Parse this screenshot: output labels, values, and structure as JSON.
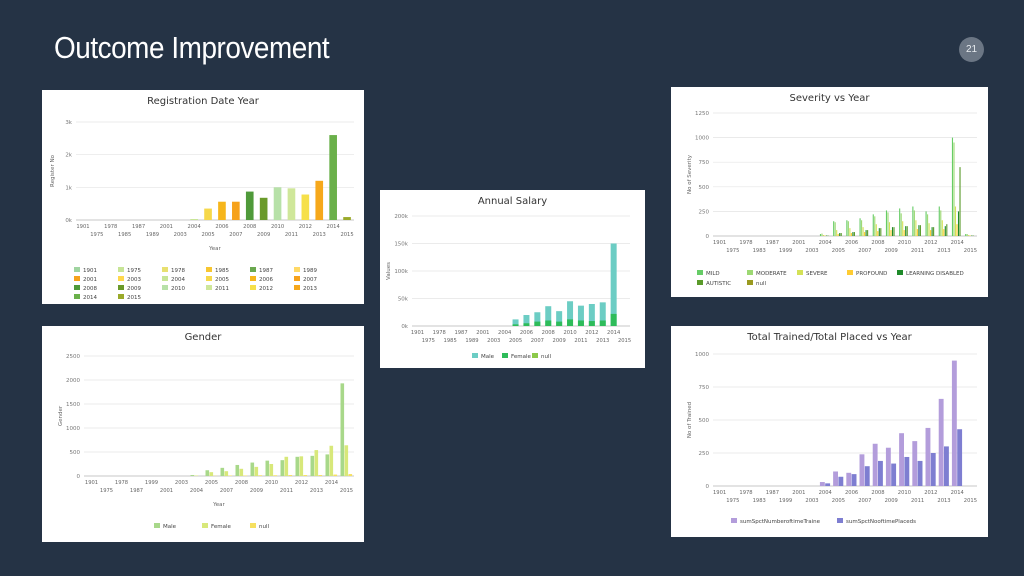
{
  "slide": {
    "title": "Outcome Improvement",
    "page_number": "21"
  },
  "chart_data": [
    {
      "id": "registration",
      "type": "bar",
      "title": "Registration Date Year",
      "xlabel": "Year",
      "ylabel": "Register No",
      "ylim": [
        0,
        3000
      ],
      "yticks": [
        0,
        1000,
        2000,
        3000
      ],
      "ytick_labels": [
        "0k",
        "1k",
        "2k",
        "3k"
      ],
      "categories": [
        "1901",
        "1975",
        "1978",
        "1985",
        "1987",
        "1989",
        "2001",
        "2003",
        "2004",
        "2005",
        "2006",
        "2007",
        "2008",
        "2009",
        "2010",
        "2011",
        "2012",
        "2013",
        "2014",
        "2015"
      ],
      "values": [
        0,
        0,
        0,
        0,
        0,
        0,
        0,
        0,
        30,
        350,
        560,
        560,
        870,
        680,
        1000,
        970,
        780,
        1200,
        2600,
        90
      ],
      "colors": [
        "#9fd4a0",
        "#c7e596",
        "#e8e070",
        "#f7c631",
        "#6aa84f",
        "#ffd966",
        "#f6a21b",
        "#ffd84d",
        "#c7e596",
        "#f6d84a",
        "#f6b61b",
        "#f6a21b",
        "#4f9a3a",
        "#6a9a2a",
        "#b7e1a8",
        "#cfe79a",
        "#f6e04a",
        "#f6a81b",
        "#6ab04a",
        "#9aaa2a"
      ],
      "legend": [
        "1901",
        "1975",
        "1978",
        "1985",
        "1987",
        "1989",
        "2001",
        "2003",
        "2004",
        "2005",
        "2006",
        "2007",
        "2008",
        "2009",
        "2010",
        "2011",
        "2012",
        "2013",
        "2014",
        "2015"
      ]
    },
    {
      "id": "annual_salary",
      "type": "bar",
      "title": "Annual Salary",
      "xlabel": "",
      "ylabel": "Values",
      "ylim": [
        0,
        200000
      ],
      "yticks": [
        0,
        50000,
        100000,
        150000,
        200000
      ],
      "ytick_labels": [
        "0k",
        "50k",
        "100k",
        "150k",
        "200k"
      ],
      "categories": [
        "1901",
        "1975",
        "1978",
        "1985",
        "1987",
        "1989",
        "2001",
        "2003",
        "2004",
        "2005",
        "2006",
        "2007",
        "2008",
        "2009",
        "2010",
        "2011",
        "2012",
        "2013",
        "2014",
        "2015"
      ],
      "series": [
        {
          "name": "Male",
          "color": "#6ccdc4",
          "values": [
            0,
            0,
            0,
            0,
            0,
            0,
            0,
            0,
            0,
            12000,
            20000,
            25000,
            36000,
            27000,
            45000,
            37000,
            40000,
            43000,
            150000,
            0
          ]
        },
        {
          "name": "Female",
          "color": "#2ebc5a",
          "values": [
            0,
            0,
            0,
            0,
            0,
            0,
            0,
            0,
            0,
            3000,
            5000,
            8000,
            10000,
            8000,
            12000,
            10000,
            9000,
            10000,
            22000,
            0
          ]
        },
        {
          "name": "null",
          "color": "#8cc94a",
          "values": [
            0,
            0,
            0,
            0,
            0,
            0,
            0,
            0,
            0,
            0,
            0,
            0,
            0,
            0,
            0,
            0,
            0,
            0,
            0,
            0
          ]
        }
      ]
    },
    {
      "id": "severity",
      "type": "bar",
      "title": "Severity vs Year",
      "xlabel": "",
      "ylabel": "No of Severity",
      "ylim": [
        0,
        1250
      ],
      "yticks": [
        0,
        250,
        500,
        750,
        1000,
        1250
      ],
      "categories": [
        "1901",
        "1975",
        "1978",
        "1983",
        "1987",
        "1999",
        "2001",
        "2003",
        "2004",
        "2005",
        "2006",
        "2007",
        "2008",
        "2009",
        "2010",
        "2011",
        "2012",
        "2013",
        "2014",
        "2015"
      ],
      "series": [
        {
          "name": "MILD",
          "color": "#66cc66",
          "values": [
            0,
            0,
            0,
            0,
            0,
            0,
            0,
            0,
            20,
            150,
            160,
            180,
            220,
            260,
            280,
            300,
            250,
            300,
            1000,
            20
          ]
        },
        {
          "name": "MODERATE",
          "color": "#9dd873",
          "values": [
            0,
            0,
            0,
            0,
            0,
            0,
            0,
            0,
            25,
            140,
            150,
            160,
            200,
            240,
            230,
            260,
            220,
            260,
            950,
            20
          ]
        },
        {
          "name": "SEVERE",
          "color": "#d4e157",
          "values": [
            0,
            0,
            0,
            0,
            0,
            0,
            0,
            0,
            10,
            60,
            80,
            90,
            120,
            140,
            150,
            160,
            130,
            160,
            300,
            10
          ]
        },
        {
          "name": "PROFOUND",
          "color": "#ffcc33",
          "values": [
            0,
            0,
            0,
            0,
            0,
            0,
            0,
            0,
            5,
            20,
            30,
            40,
            50,
            60,
            60,
            70,
            60,
            70,
            120,
            5
          ]
        },
        {
          "name": "LEARNING DISABLED",
          "color": "#1e8a2a",
          "values": [
            0,
            0,
            0,
            0,
            0,
            0,
            0,
            0,
            5,
            30,
            40,
            60,
            80,
            90,
            100,
            110,
            90,
            100,
            250,
            5
          ]
        },
        {
          "name": "AUTISTIC",
          "color": "#5a9a2a",
          "values": [
            0,
            0,
            0,
            0,
            0,
            0,
            0,
            0,
            5,
            30,
            40,
            60,
            80,
            90,
            100,
            110,
            90,
            120,
            700,
            5
          ]
        },
        {
          "name": "null",
          "color": "#9a9a20",
          "values": [
            0,
            0,
            0,
            0,
            0,
            0,
            0,
            0,
            0,
            0,
            0,
            0,
            0,
            0,
            0,
            0,
            0,
            0,
            0,
            0
          ]
        }
      ]
    },
    {
      "id": "gender",
      "type": "bar",
      "title": "Gender",
      "xlabel": "Year",
      "ylabel": "Gender",
      "ylim": [
        0,
        2500
      ],
      "yticks": [
        0,
        500,
        1000,
        1500,
        2000,
        2500
      ],
      "categories": [
        "1901",
        "1975",
        "1978",
        "1987",
        "1999",
        "2001",
        "2003",
        "2004",
        "2005",
        "2007",
        "2008",
        "2009",
        "2010",
        "2011",
        "2012",
        "2013",
        "2014",
        "2015"
      ],
      "series": [
        {
          "name": "Male",
          "color": "#a8d88a",
          "values": [
            0,
            0,
            0,
            0,
            0,
            0,
            0,
            20,
            120,
            170,
            230,
            280,
            320,
            330,
            400,
            420,
            450,
            1930
          ]
        },
        {
          "name": "Female",
          "color": "#d8e87a",
          "values": [
            0,
            0,
            0,
            0,
            0,
            0,
            0,
            10,
            80,
            100,
            150,
            190,
            250,
            400,
            410,
            540,
            630,
            640
          ]
        },
        {
          "name": "null",
          "color": "#f6e060",
          "values": [
            0,
            0,
            0,
            0,
            0,
            0,
            0,
            0,
            5,
            10,
            10,
            15,
            15,
            20,
            20,
            20,
            30,
            40
          ]
        }
      ]
    },
    {
      "id": "trained_placed",
      "type": "bar",
      "title": "Total Trained/Total Placed vs Year",
      "xlabel": "",
      "ylabel": "No of Trained",
      "ylim": [
        0,
        1000
      ],
      "yticks": [
        0,
        250,
        500,
        750,
        1000
      ],
      "categories": [
        "1901",
        "1975",
        "1978",
        "1983",
        "1987",
        "1999",
        "2001",
        "2003",
        "2004",
        "2005",
        "2006",
        "2007",
        "2008",
        "2009",
        "2010",
        "2011",
        "2012",
        "2013",
        "2014",
        "2015"
      ],
      "series": [
        {
          "name": "sumSpctNumberoftimeTraine",
          "color": "#b39ddb",
          "values": [
            0,
            0,
            0,
            0,
            0,
            0,
            0,
            0,
            30,
            110,
            100,
            240,
            320,
            290,
            400,
            340,
            440,
            660,
            950,
            0
          ]
        },
        {
          "name": "sumSpctNooftimePlaceds",
          "color": "#7e7ed1",
          "values": [
            0,
            0,
            0,
            0,
            0,
            0,
            0,
            0,
            20,
            70,
            90,
            150,
            190,
            170,
            220,
            190,
            250,
            300,
            430,
            0
          ]
        }
      ]
    }
  ]
}
